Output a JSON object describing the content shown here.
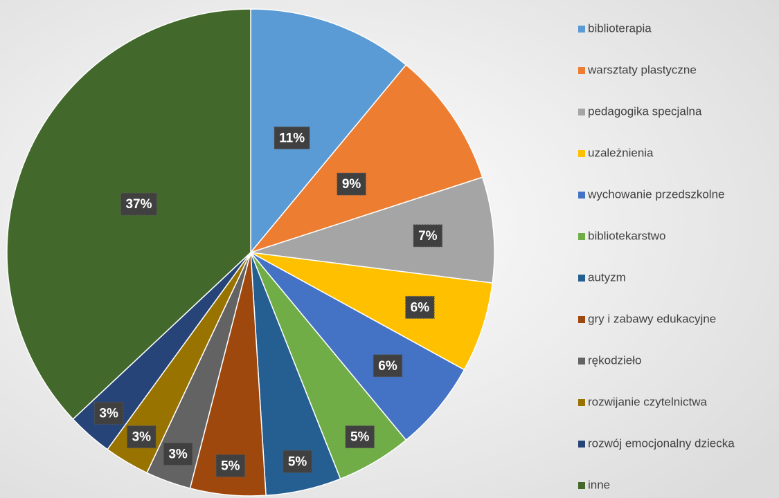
{
  "chart_data": {
    "type": "pie",
    "categories": [
      "biblioterapia",
      "warsztaty plastyczne",
      "pedagogika specjalna",
      "uzależnienia",
      "wychowanie przedszkolne",
      "bibliotekarstwo",
      "autyzm",
      "gry i zabawy edukacyjne",
      "rękodzieło",
      "rozwijanie czytelnictwa",
      "rozwój emocjonalny dziecka",
      "inne"
    ],
    "values": [
      11,
      9,
      7,
      6,
      6,
      5,
      5,
      5,
      3,
      3,
      3,
      37
    ],
    "value_labels": [
      "11%",
      "9%",
      "7%",
      "6%",
      "6%",
      "5%",
      "5%",
      "5%",
      "3%",
      "3%",
      "3%",
      "37%"
    ],
    "colors": [
      "#5B9BD5",
      "#ED7D31",
      "#A5A5A5",
      "#FFC000",
      "#4472C4",
      "#70AD47",
      "#255E91",
      "#9E480E",
      "#636363",
      "#997300",
      "#264478",
      "#43682B"
    ],
    "legend": "right"
  }
}
